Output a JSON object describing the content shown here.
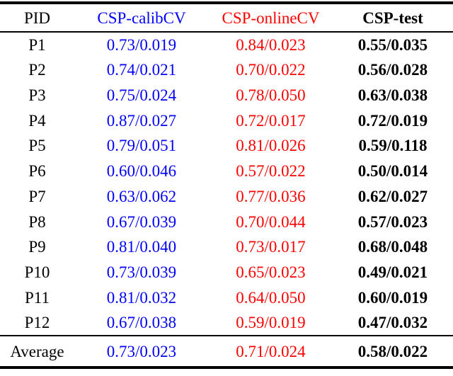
{
  "colors": {
    "calib": "#0000ff",
    "online": "#ff0000",
    "test": "#000000"
  },
  "table": {
    "columns": [
      {
        "label": "PID"
      },
      {
        "label": "CSP-calibCV"
      },
      {
        "label": "CSP-onlineCV"
      },
      {
        "label": "CSP-test"
      }
    ],
    "rows": [
      {
        "pid": "P1",
        "calib": "0.73/0.019",
        "online": "0.84/0.023",
        "test": "0.55/0.035"
      },
      {
        "pid": "P2",
        "calib": "0.74/0.021",
        "online": "0.70/0.022",
        "test": "0.56/0.028"
      },
      {
        "pid": "P3",
        "calib": "0.75/0.024",
        "online": "0.78/0.050",
        "test": "0.63/0.038"
      },
      {
        "pid": "P4",
        "calib": "0.87/0.027",
        "online": "0.72/0.017",
        "test": "0.72/0.019"
      },
      {
        "pid": "P5",
        "calib": "0.79/0.051",
        "online": "0.81/0.026",
        "test": "0.59/0.118"
      },
      {
        "pid": "P6",
        "calib": "0.60/0.046",
        "online": "0.57/0.022",
        "test": "0.50/0.014"
      },
      {
        "pid": "P7",
        "calib": "0.63/0.062",
        "online": "0.77/0.036",
        "test": "0.62/0.027"
      },
      {
        "pid": "P8",
        "calib": "0.67/0.039",
        "online": "0.70/0.044",
        "test": "0.57/0.023"
      },
      {
        "pid": "P9",
        "calib": "0.81/0.040",
        "online": "0.73/0.017",
        "test": "0.68/0.048"
      },
      {
        "pid": "P10",
        "calib": "0.73/0.039",
        "online": "0.65/0.023",
        "test": "0.49/0.021"
      },
      {
        "pid": "P11",
        "calib": "0.81/0.032",
        "online": "0.64/0.050",
        "test": "0.60/0.019"
      },
      {
        "pid": "P12",
        "calib": "0.67/0.038",
        "online": "0.59/0.019",
        "test": "0.47/0.032"
      }
    ],
    "average": {
      "pid": "Average",
      "calib": "0.73/0.023",
      "online": "0.71/0.024",
      "test": "0.58/0.022"
    }
  }
}
